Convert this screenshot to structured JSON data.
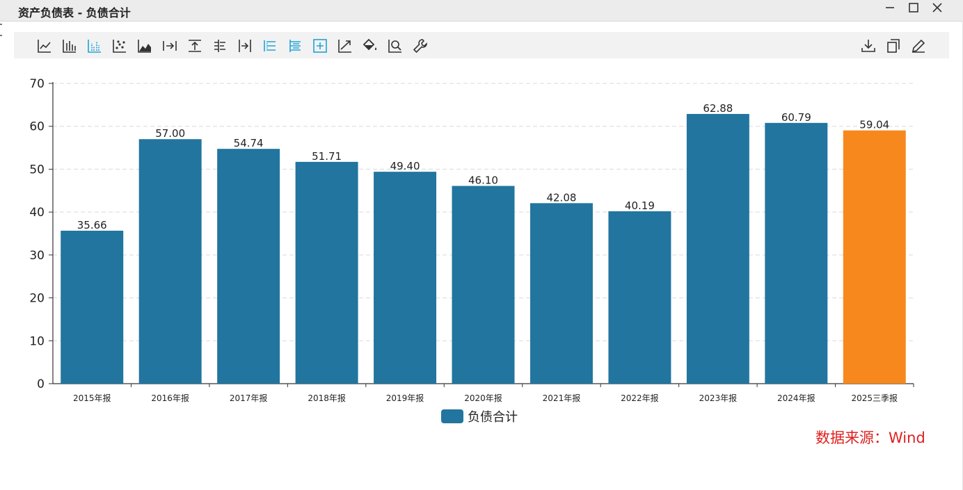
{
  "window": {
    "title": "资产负债表 - 负债合计",
    "controls": [
      "minimize-icon",
      "maximize-icon",
      "close-icon"
    ]
  },
  "toolbar": {
    "left_tools": [
      {
        "name": "line-chart-icon",
        "active": false
      },
      {
        "name": "bar-chart-icon",
        "active": false
      },
      {
        "name": "grouped-bar-icon",
        "active": true
      },
      {
        "name": "scatter-icon",
        "active": false
      },
      {
        "name": "area-chart-icon",
        "active": false
      },
      {
        "name": "align-right-icon",
        "active": false
      },
      {
        "name": "align-top-icon",
        "active": false
      },
      {
        "name": "tree-icon",
        "active": false
      },
      {
        "name": "push-right-icon",
        "active": false
      },
      {
        "name": "list-icon",
        "active": true
      },
      {
        "name": "tree-list-icon",
        "active": true
      },
      {
        "name": "expand-box-icon",
        "active": true
      },
      {
        "name": "trend-arrow-icon",
        "active": false
      },
      {
        "name": "paint-bucket-icon",
        "active": false
      },
      {
        "name": "zoom-icon",
        "active": false
      },
      {
        "name": "wrench-icon",
        "active": false
      }
    ],
    "right_tools": [
      "download-icon",
      "copy-icon",
      "edit-icon"
    ],
    "active_color": "#1fa3d6",
    "icon_color": "#333333"
  },
  "chart_data": {
    "type": "bar",
    "title": "",
    "xlabel": "",
    "ylabel": "",
    "categories": [
      "2015年报",
      "2016年报",
      "2017年报",
      "2018年报",
      "2019年报",
      "2020年报",
      "2021年报",
      "2022年报",
      "2023年报",
      "2024年报",
      "2025三季报"
    ],
    "series": [
      {
        "name": "负债合计",
        "values": [
          35.66,
          57.0,
          54.74,
          51.71,
          49.4,
          46.1,
          42.08,
          40.19,
          62.88,
          60.79,
          59.04
        ],
        "value_labels": [
          "35.66",
          "57.00",
          "54.74",
          "51.71",
          "49.40",
          "46.10",
          "42.08",
          "40.19",
          "62.88",
          "60.79",
          "59.04"
        ],
        "color": "#21759f",
        "highlight_index": 10,
        "highlight_color": "#f7881d"
      }
    ],
    "ylim": [
      0,
      70
    ],
    "yticks": [
      0,
      10,
      20,
      30,
      40,
      50,
      60,
      70
    ],
    "grid": true,
    "legend": "bottom-center"
  },
  "legend": {
    "label": "负债合计"
  },
  "source": {
    "text": "数据来源：Wind",
    "color": "#e02020"
  }
}
